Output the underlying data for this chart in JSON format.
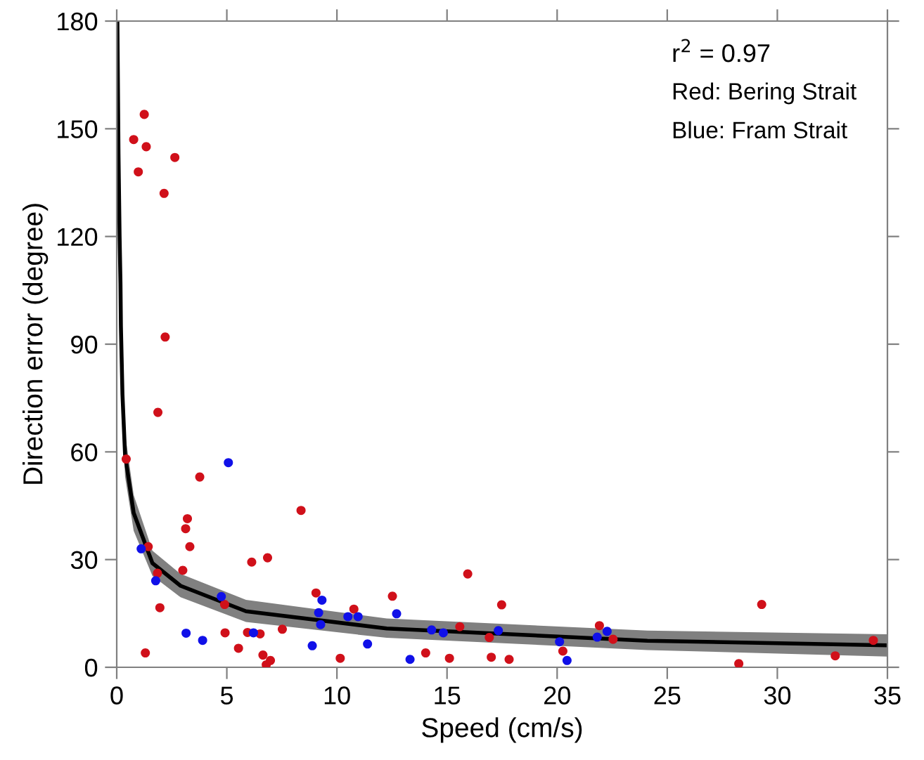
{
  "chart_data": {
    "type": "scatter",
    "xlabel": "Speed (cm/s)",
    "ylabel": "Direction error (degree)",
    "xlim": [
      0,
      35
    ],
    "ylim": [
      0,
      180
    ],
    "xticks": [
      0,
      5,
      10,
      15,
      20,
      25,
      30,
      35
    ],
    "yticks": [
      0,
      30,
      60,
      90,
      120,
      150,
      180
    ],
    "grid": false,
    "legend": false,
    "marker": "circle",
    "annotations": [
      "r$^{2}$ = 0.97",
      "Red: Bering Strait",
      "Blue: Fram Strait"
    ],
    "series": [
      {
        "type": "line",
        "color": "#000000",
        "marker": "none",
        "line_style": "solid",
        "x": [
          0.03,
          0.08,
          0.13,
          0.17,
          0.19,
          0.26,
          0.38,
          0.77,
          1.62,
          2.9,
          5.87,
          12.26,
          24.1,
          35
        ],
        "values": [
          180,
          143,
          120,
          107,
          95,
          76,
          59,
          43,
          29,
          22.7,
          15.6,
          10.8,
          7.4,
          6.1
        ],
        "lower": [
          175,
          135,
          110,
          97,
          86,
          69,
          53,
          38,
          25.5,
          19.5,
          12.6,
          8.2,
          4.8,
          3.0
        ],
        "upper": [
          180,
          152,
          130,
          117,
          104,
          84,
          65,
          48,
          32.5,
          26,
          18.8,
          13.6,
          10.2,
          9.2
        ]
      },
      {
        "color": "#d0101a",
        "x": [
          1.25,
          0.77,
          1.34,
          2.64,
          0.98,
          2.15,
          2.2,
          1.87,
          0.43,
          3.77,
          8.37,
          3.21,
          3.13,
          3.32,
          1.43,
          6.85,
          6.13,
          3.0,
          1.85,
          9.05,
          4.9,
          1.96,
          10.77,
          7.52,
          4.92,
          5.94,
          6.51,
          5.53,
          1.3,
          6.64,
          6.98,
          6.79,
          10.15,
          15.94,
          12.52,
          17.48,
          15.58,
          16.92,
          14.03,
          15.11,
          17.01,
          17.82,
          20.26,
          21.92,
          22.54,
          29.29,
          28.25,
          32.63,
          34.36
        ],
        "values": [
          154,
          147,
          145,
          142,
          138,
          132,
          92,
          71,
          58,
          53,
          43.7,
          41.4,
          38.6,
          33.6,
          33.6,
          30.5,
          29.3,
          27,
          26.2,
          20.7,
          17.5,
          16.6,
          16.2,
          10.6,
          9.6,
          9.7,
          9.3,
          5.3,
          4.0,
          3.4,
          1.9,
          0.7,
          2.5,
          26,
          19.8,
          17.4,
          11.3,
          8.3,
          4.0,
          2.5,
          2.8,
          2.2,
          4.5,
          11.6,
          7.8,
          17.5,
          1.0,
          3.2,
          7.5
        ]
      },
      {
        "color": "#1010e8",
        "x": [
          5.07,
          1.11,
          1.77,
          9.32,
          4.75,
          9.17,
          10.5,
          10.96,
          9.26,
          3.15,
          6.21,
          3.9,
          8.88,
          11.39,
          12.71,
          14.3,
          14.83,
          17.33,
          13.32,
          20.11,
          20.45,
          22.27,
          21.82
        ],
        "values": [
          57,
          33,
          24.1,
          18.7,
          19.7,
          15.2,
          14.1,
          14.1,
          11.9,
          9.5,
          9.6,
          7.5,
          6.0,
          6.5,
          14.9,
          10.4,
          9.6,
          10.2,
          2.2,
          7.1,
          1.9,
          10.0,
          8.4
        ]
      }
    ]
  }
}
